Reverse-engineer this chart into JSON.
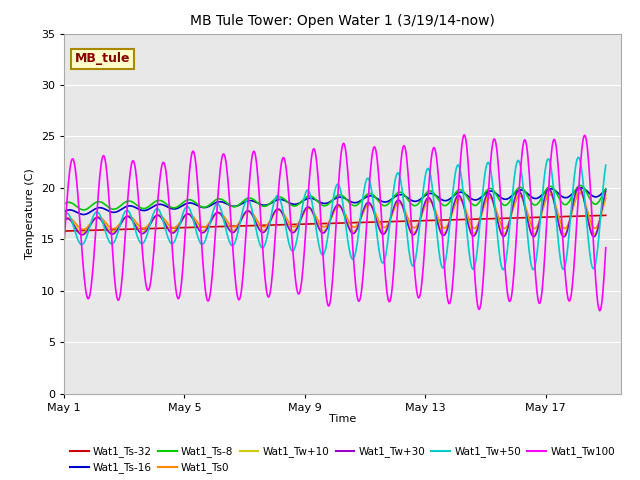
{
  "title": "MB Tule Tower: Open Water 1 (3/19/14-now)",
  "xlabel": "Time",
  "ylabel": "Temperature (C)",
  "ylim": [
    0,
    35
  ],
  "xlim": [
    1,
    19.5
  ],
  "yticks": [
    0,
    5,
    10,
    15,
    20,
    25,
    30,
    35
  ],
  "xtick_labels": [
    "May 1",
    "May 5",
    "May 9",
    "May 13",
    "May 17"
  ],
  "xtick_positions": [
    1,
    5,
    9,
    13,
    17
  ],
  "plot_bg": "#e8e8e8",
  "series": [
    {
      "name": "Wat1_Ts-32",
      "color": "#cc0000",
      "linewidth": 1.2
    },
    {
      "name": "Wat1_Ts-16",
      "color": "#0000cc",
      "linewidth": 1.2
    },
    {
      "name": "Wat1_Ts-8",
      "color": "#00cc00",
      "linewidth": 1.2
    },
    {
      "name": "Wat1_Ts0",
      "color": "#ff8800",
      "linewidth": 1.2
    },
    {
      "name": "Wat1_Tw+10",
      "color": "#cccc00",
      "linewidth": 1.2
    },
    {
      "name": "Wat1_Tw+30",
      "color": "#9900cc",
      "linewidth": 1.2
    },
    {
      "name": "Wat1_Tw+50",
      "color": "#00cccc",
      "linewidth": 1.2
    },
    {
      "name": "Wat1_Tw100",
      "color": "#ff00ff",
      "linewidth": 1.2
    }
  ],
  "annotation_box": {
    "text": "MB_tule",
    "facecolor": "#ffffcc",
    "edgecolor": "#aa8800",
    "textcolor": "#880000",
    "fontsize": 9,
    "fontweight": "bold"
  },
  "legend_ncol": 6,
  "legend_fontsize": 7.5
}
